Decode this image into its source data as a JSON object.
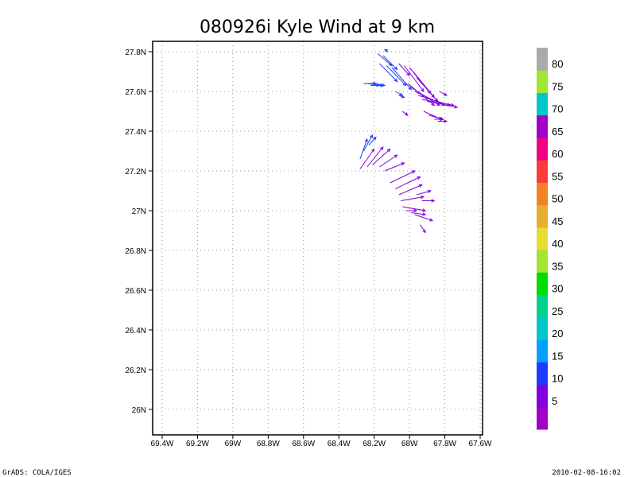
{
  "chart_data": {
    "type": "vector-field",
    "title": "080926i Kyle Wind at 9 km",
    "xlim": [
      -69.45,
      -67.55
    ],
    "ylim": [
      25.87,
      27.85
    ],
    "x_ticks": [
      -69.4,
      -69.2,
      -69.0,
      -68.8,
      -68.6,
      -68.4,
      -68.2,
      -68.0,
      -67.8,
      -67.6
    ],
    "x_tick_labels": [
      "69.4W",
      "69.2W",
      "69W",
      "68.8W",
      "68.6W",
      "68.4W",
      "68.2W",
      "68W",
      "67.8W",
      "67.6W"
    ],
    "y_ticks": [
      26.0,
      26.2,
      26.4,
      26.6,
      26.8,
      27.0,
      27.2,
      27.4,
      27.6,
      27.8
    ],
    "y_tick_labels": [
      "26N",
      "26.2N",
      "26.4N",
      "26.6N",
      "26.8N",
      "27N",
      "27.2N",
      "27.4N",
      "27.6N",
      "27.8N"
    ],
    "grid": true,
    "colorbar": {
      "colors": [
        "#a000c8",
        "#8200dc",
        "#1e3cff",
        "#00a0ff",
        "#00c8c8",
        "#00d28c",
        "#00dc00",
        "#a0e632",
        "#e6dc32",
        "#e6af2d",
        "#f08228",
        "#fa3c3c",
        "#f00082",
        "#a000c8",
        "#00c8c8",
        "#a0e632",
        "#aaaaaa"
      ],
      "labels": [
        "5",
        "10",
        "15",
        "20",
        "25",
        "30",
        "35",
        "40",
        "45",
        "50",
        "55",
        "60",
        "65",
        "70",
        "75",
        "80"
      ]
    },
    "vectors": [
      {
        "lon": -68.18,
        "lat": 27.79,
        "u": 0.08,
        "v": -0.06,
        "color": "#1e3cff"
      },
      {
        "lon": -68.15,
        "lat": 27.78,
        "u": 0.08,
        "v": -0.07,
        "color": "#1e3cff"
      },
      {
        "lon": -68.12,
        "lat": 27.8,
        "u": -0.02,
        "v": 0.01,
        "color": "#1e3cff"
      },
      {
        "lon": -68.17,
        "lat": 27.74,
        "u": 0.1,
        "v": -0.09,
        "color": "#1e3cff"
      },
      {
        "lon": -68.13,
        "lat": 27.73,
        "u": 0.11,
        "v": -0.1,
        "color": "#1e3cff"
      },
      {
        "lon": -68.1,
        "lat": 27.72,
        "u": 0.11,
        "v": -0.11,
        "color": "#1e3cff"
      },
      {
        "lon": -68.06,
        "lat": 27.74,
        "u": 0.06,
        "v": -0.06,
        "color": "#8200dc"
      },
      {
        "lon": -68.26,
        "lat": 27.64,
        "u": 0.07,
        "v": 0.0,
        "color": "#1e3cff"
      },
      {
        "lon": -68.24,
        "lat": 27.64,
        "u": 0.07,
        "v": -0.01,
        "color": "#1e3cff"
      },
      {
        "lon": -68.22,
        "lat": 27.63,
        "u": 0.07,
        "v": 0.0,
        "color": "#1e3cff"
      },
      {
        "lon": -68.2,
        "lat": 27.64,
        "u": 0.06,
        "v": -0.01,
        "color": "#1e3cff"
      },
      {
        "lon": -68.08,
        "lat": 27.6,
        "u": 0.04,
        "v": -0.02,
        "color": "#1e3cff"
      },
      {
        "lon": -68.06,
        "lat": 27.58,
        "u": 0.03,
        "v": -0.01,
        "color": "#1e3cff"
      },
      {
        "lon": -68.03,
        "lat": 27.73,
        "u": 0.11,
        "v": -0.13,
        "color": "#8200dc"
      },
      {
        "lon": -68.0,
        "lat": 27.72,
        "u": 0.12,
        "v": -0.13,
        "color": "#8200dc"
      },
      {
        "lon": -67.98,
        "lat": 27.7,
        "u": 0.12,
        "v": -0.13,
        "color": "#8200dc"
      },
      {
        "lon": -67.96,
        "lat": 27.67,
        "u": 0.12,
        "v": -0.12,
        "color": "#8200dc"
      },
      {
        "lon": -68.01,
        "lat": 27.64,
        "u": 0.15,
        "v": -0.11,
        "color": "#8200dc"
      },
      {
        "lon": -67.99,
        "lat": 27.62,
        "u": 0.16,
        "v": -0.09,
        "color": "#8200dc"
      },
      {
        "lon": -67.97,
        "lat": 27.6,
        "u": 0.17,
        "v": -0.07,
        "color": "#8200dc"
      },
      {
        "lon": -67.95,
        "lat": 27.58,
        "u": 0.18,
        "v": -0.05,
        "color": "#8200dc"
      },
      {
        "lon": -67.93,
        "lat": 27.56,
        "u": 0.18,
        "v": -0.03,
        "color": "#8200dc"
      },
      {
        "lon": -67.9,
        "lat": 27.55,
        "u": 0.17,
        "v": -0.03,
        "color": "#8200dc"
      },
      {
        "lon": -67.92,
        "lat": 27.5,
        "u": 0.1,
        "v": -0.04,
        "color": "#8200dc"
      },
      {
        "lon": -67.89,
        "lat": 27.48,
        "u": 0.08,
        "v": -0.02,
        "color": "#8200dc"
      },
      {
        "lon": -67.86,
        "lat": 27.46,
        "u": 0.05,
        "v": 0.0,
        "color": "#8200dc"
      },
      {
        "lon": -67.84,
        "lat": 27.45,
        "u": 0.05,
        "v": 0.0,
        "color": "#8200dc"
      },
      {
        "lon": -68.04,
        "lat": 27.5,
        "u": 0.03,
        "v": -0.02,
        "color": "#8200dc"
      },
      {
        "lon": -67.83,
        "lat": 27.6,
        "u": 0.04,
        "v": -0.02,
        "color": "#8200dc"
      },
      {
        "lon": -68.28,
        "lat": 27.26,
        "u": 0.04,
        "v": 0.1,
        "color": "#1e3cff"
      },
      {
        "lon": -68.26,
        "lat": 27.3,
        "u": 0.05,
        "v": 0.08,
        "color": "#1e3cff"
      },
      {
        "lon": -68.23,
        "lat": 27.33,
        "u": 0.04,
        "v": 0.04,
        "color": "#1e3cff"
      },
      {
        "lon": -68.28,
        "lat": 27.21,
        "u": 0.08,
        "v": 0.1,
        "color": "#8200dc"
      },
      {
        "lon": -68.24,
        "lat": 27.22,
        "u": 0.09,
        "v": 0.1,
        "color": "#8200dc"
      },
      {
        "lon": -68.21,
        "lat": 27.23,
        "u": 0.1,
        "v": 0.08,
        "color": "#8200dc"
      },
      {
        "lon": -68.17,
        "lat": 27.22,
        "u": 0.1,
        "v": 0.06,
        "color": "#8200dc"
      },
      {
        "lon": -68.14,
        "lat": 27.2,
        "u": 0.11,
        "v": 0.04,
        "color": "#8200dc"
      },
      {
        "lon": -68.11,
        "lat": 27.14,
        "u": 0.14,
        "v": 0.06,
        "color": "#8200dc"
      },
      {
        "lon": -68.08,
        "lat": 27.11,
        "u": 0.14,
        "v": 0.06,
        "color": "#8200dc"
      },
      {
        "lon": -68.06,
        "lat": 27.08,
        "u": 0.13,
        "v": 0.05,
        "color": "#8200dc"
      },
      {
        "lon": -68.05,
        "lat": 27.05,
        "u": 0.13,
        "v": 0.02,
        "color": "#8200dc"
      },
      {
        "lon": -68.04,
        "lat": 27.02,
        "u": 0.13,
        "v": -0.02,
        "color": "#8200dc"
      },
      {
        "lon": -68.02,
        "lat": 27.0,
        "u": 0.06,
        "v": 0.0,
        "color": "#8200dc"
      },
      {
        "lon": -67.99,
        "lat": 26.99,
        "u": 0.08,
        "v": -0.01,
        "color": "#8200dc"
      },
      {
        "lon": -67.97,
        "lat": 26.98,
        "u": 0.1,
        "v": -0.03,
        "color": "#8200dc"
      },
      {
        "lon": -67.94,
        "lat": 26.93,
        "u": 0.03,
        "v": -0.04,
        "color": "#8200dc"
      },
      {
        "lon": -67.96,
        "lat": 27.08,
        "u": 0.08,
        "v": 0.02,
        "color": "#8200dc"
      },
      {
        "lon": -67.93,
        "lat": 27.05,
        "u": 0.07,
        "v": 0.0,
        "color": "#8200dc"
      }
    ]
  },
  "footer": {
    "left": "GrADS: COLA/IGES",
    "right": "2010-02-08-16:02"
  }
}
